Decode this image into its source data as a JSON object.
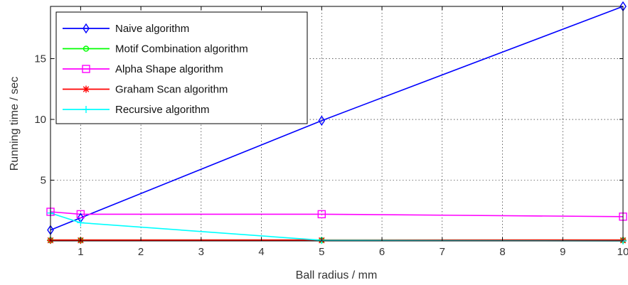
{
  "chart_data": {
    "type": "line",
    "title": "",
    "xlabel": "Ball radius / mm",
    "ylabel": "Running time / sec",
    "xlim": [
      0.5,
      10
    ],
    "ylim": [
      0,
      19.3
    ],
    "xticks": [
      1,
      2,
      3,
      4,
      5,
      6,
      7,
      8,
      9,
      10
    ],
    "yticks": [
      5,
      10,
      15
    ],
    "grid": true,
    "legend_position": "top-left",
    "series": [
      {
        "name": "Naive algorithm",
        "color": "#0000ff",
        "marker": "diamond",
        "x": [
          0.5,
          1,
          5,
          10
        ],
        "y": [
          0.9,
          1.9,
          9.9,
          19.3
        ]
      },
      {
        "name": "Motif Combination algorithm",
        "color": "#00ff00",
        "marker": "circle",
        "x": [
          0.5,
          1,
          5,
          10
        ],
        "y": [
          0.05,
          0.05,
          0.05,
          0.05
        ]
      },
      {
        "name": "Alpha Shape algorithm",
        "color": "#ff00ff",
        "marker": "square",
        "x": [
          0.5,
          1,
          5,
          10
        ],
        "y": [
          2.4,
          2.2,
          2.2,
          2.0
        ]
      },
      {
        "name": "Graham Scan algorithm",
        "color": "#ff0000",
        "marker": "asterisk",
        "x": [
          0.5,
          1,
          5,
          10
        ],
        "y": [
          0.05,
          0.05,
          0.05,
          0.05
        ]
      },
      {
        "name": "Recursive algorithm",
        "color": "#00ffff",
        "marker": "plus",
        "x": [
          0.5,
          1,
          5,
          10
        ],
        "y": [
          2.3,
          1.5,
          0.05,
          0.0
        ]
      }
    ]
  }
}
